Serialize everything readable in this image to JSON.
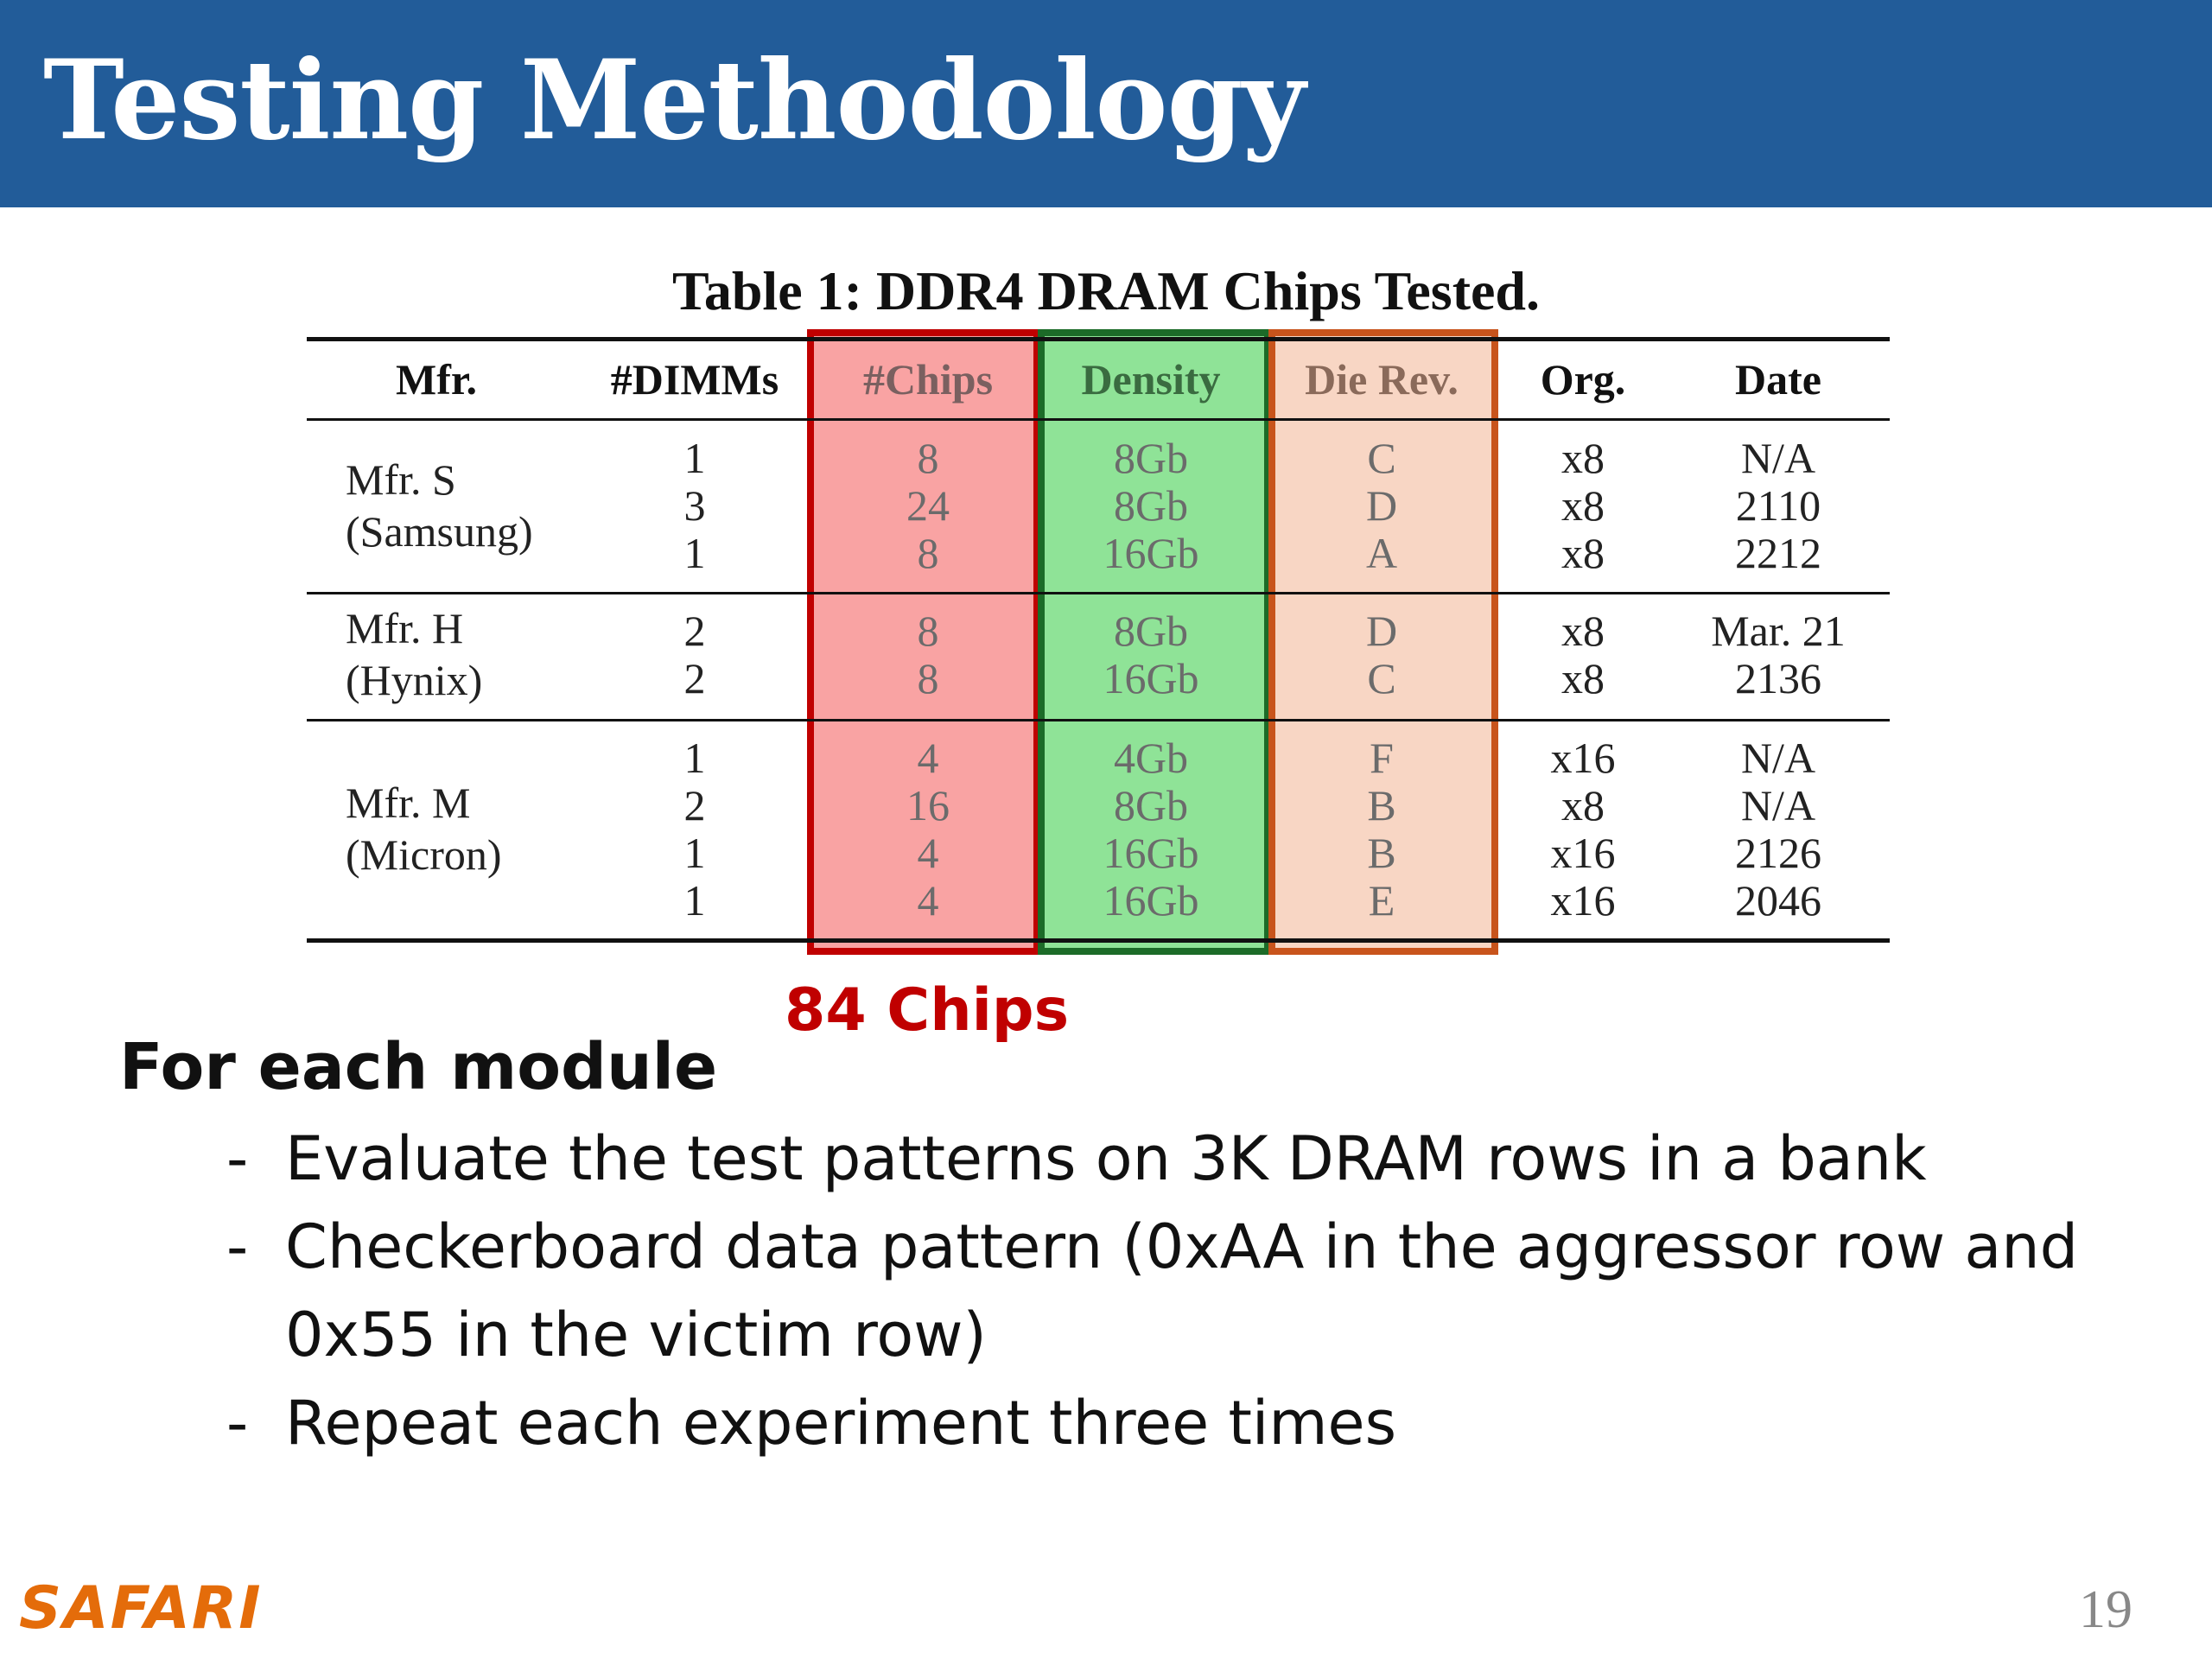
{
  "slide": {
    "title": "Testing Methodology",
    "page_number": "19",
    "logo_text": "SAFARI"
  },
  "table": {
    "caption": "Table 1: DDR4 DRAM Chips Tested.",
    "headers": [
      "Mfr.",
      "#DIMMs",
      "#Chips",
      "Density",
      "Die Rev.",
      "Org.",
      "Date"
    ],
    "groups": [
      {
        "mfr_line1": "Mfr. S",
        "mfr_line2": "(Samsung)",
        "rows": [
          {
            "dimms": "1",
            "chips": "8",
            "density": "8Gb",
            "die_rev": "C",
            "org": "x8",
            "date": "N/A"
          },
          {
            "dimms": "3",
            "chips": "24",
            "density": "8Gb",
            "die_rev": "D",
            "org": "x8",
            "date": "2110"
          },
          {
            "dimms": "1",
            "chips": "8",
            "density": "16Gb",
            "die_rev": "A",
            "org": "x8",
            "date": "2212"
          }
        ]
      },
      {
        "mfr_line1": "Mfr. H",
        "mfr_line2": "(Hynix)",
        "rows": [
          {
            "dimms": "2",
            "chips": "8",
            "density": "8Gb",
            "die_rev": "D",
            "org": "x8",
            "date": "Mar. 21"
          },
          {
            "dimms": "2",
            "chips": "8",
            "density": "16Gb",
            "die_rev": "C",
            "org": "x8",
            "date": "2136"
          }
        ]
      },
      {
        "mfr_line1": "Mfr. M",
        "mfr_line2": "(Micron)",
        "rows": [
          {
            "dimms": "1",
            "chips": "4",
            "density": "4Gb",
            "die_rev": "F",
            "org": "x16",
            "date": "N/A"
          },
          {
            "dimms": "2",
            "chips": "16",
            "density": "8Gb",
            "die_rev": "B",
            "org": "x8",
            "date": "N/A"
          },
          {
            "dimms": "1",
            "chips": "4",
            "density": "16Gb",
            "die_rev": "B",
            "org": "x16",
            "date": "2126"
          },
          {
            "dimms": "1",
            "chips": "4",
            "density": "16Gb",
            "die_rev": "E",
            "org": "x16",
            "date": "2046"
          }
        ]
      }
    ],
    "highlight_colors": {
      "chips_fill": "#f9a3a3",
      "chips_border": "#c00000",
      "density_fill": "#8fe397",
      "density_border": "#1c6b28",
      "die_rev_fill": "#f8d6c4",
      "die_rev_border": "#c8541c"
    }
  },
  "annotation": {
    "chips_total": "84 Chips"
  },
  "body": {
    "heading": "For each module",
    "bullets": [
      {
        "dash": "-",
        "line1": "Evaluate the test patterns on 3K DRAM rows in a bank",
        "line2": ""
      },
      {
        "dash": "-",
        "line1": "Checkerboard data pattern (0xAA in the aggressor row and",
        "line2": "0x55 in the victim row)"
      },
      {
        "dash": "-",
        "line1": "Repeat each experiment three times",
        "line2": ""
      }
    ]
  }
}
